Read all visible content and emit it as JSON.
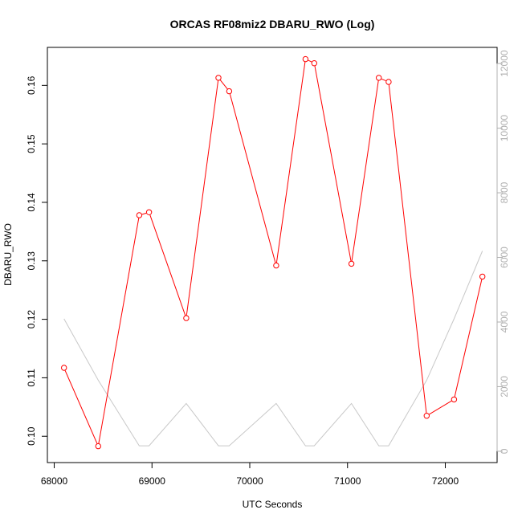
{
  "chart_data": {
    "type": "line",
    "title": "ORCAS RF08miz2 DBARU_RWO (Log)",
    "xlabel": "UTC Seconds",
    "ylabel": "DBARU_RWO",
    "xlim": [
      67930,
      72530
    ],
    "ylim": [
      0.0955,
      0.1665
    ],
    "y2lim": [
      -350,
      12500
    ],
    "xticks": [
      68000,
      69000,
      70000,
      71000,
      72000
    ],
    "yticks": [
      0.1,
      0.11,
      0.12,
      0.13,
      0.14,
      0.15,
      0.16
    ],
    "ytick_labels": [
      "0.10",
      "0.11",
      "0.12",
      "0.13",
      "0.14",
      "0.15",
      "0.16"
    ],
    "y2ticks": [
      0,
      2000,
      4000,
      6000,
      8000,
      10000,
      12000
    ],
    "grid": false,
    "colors": {
      "primary": "#ff0000",
      "secondary": "#c8c8c8",
      "right_axis": "#b0b0b0"
    },
    "series": [
      {
        "axis": "left",
        "marker": "open-circle",
        "points": [
          {
            "x": 68100,
            "y": 0.1117
          },
          {
            "x": 68450,
            "y": 0.0983
          },
          {
            "x": 68870,
            "y": 0.1378
          },
          {
            "x": 68970,
            "y": 0.1383
          },
          {
            "x": 69350,
            "y": 0.1202
          },
          {
            "x": 69680,
            "y": 0.1613
          },
          {
            "x": 69790,
            "y": 0.159
          },
          {
            "x": 70270,
            "y": 0.1292
          },
          {
            "x": 70570,
            "y": 0.1645
          },
          {
            "x": 70660,
            "y": 0.1638
          },
          {
            "x": 71040,
            "y": 0.1295
          },
          {
            "x": 71320,
            "y": 0.1613
          },
          {
            "x": 71420,
            "y": 0.1606
          },
          {
            "x": 71810,
            "y": 0.1035
          },
          {
            "x": 72090,
            "y": 0.1063
          },
          {
            "x": 72380,
            "y": 0.1273
          }
        ]
      },
      {
        "axis": "right",
        "marker": "none",
        "points": [
          {
            "x": 68100,
            "y": 4100
          },
          {
            "x": 68450,
            "y": 2200
          },
          {
            "x": 68870,
            "y": 170
          },
          {
            "x": 68970,
            "y": 170
          },
          {
            "x": 69350,
            "y": 1480
          },
          {
            "x": 69680,
            "y": 170
          },
          {
            "x": 69790,
            "y": 170
          },
          {
            "x": 70270,
            "y": 1480
          },
          {
            "x": 70570,
            "y": 170
          },
          {
            "x": 70660,
            "y": 170
          },
          {
            "x": 71040,
            "y": 1480
          },
          {
            "x": 71320,
            "y": 170
          },
          {
            "x": 71420,
            "y": 170
          },
          {
            "x": 71810,
            "y": 2200
          },
          {
            "x": 72090,
            "y": 4100
          },
          {
            "x": 72380,
            "y": 6200
          }
        ]
      }
    ]
  }
}
